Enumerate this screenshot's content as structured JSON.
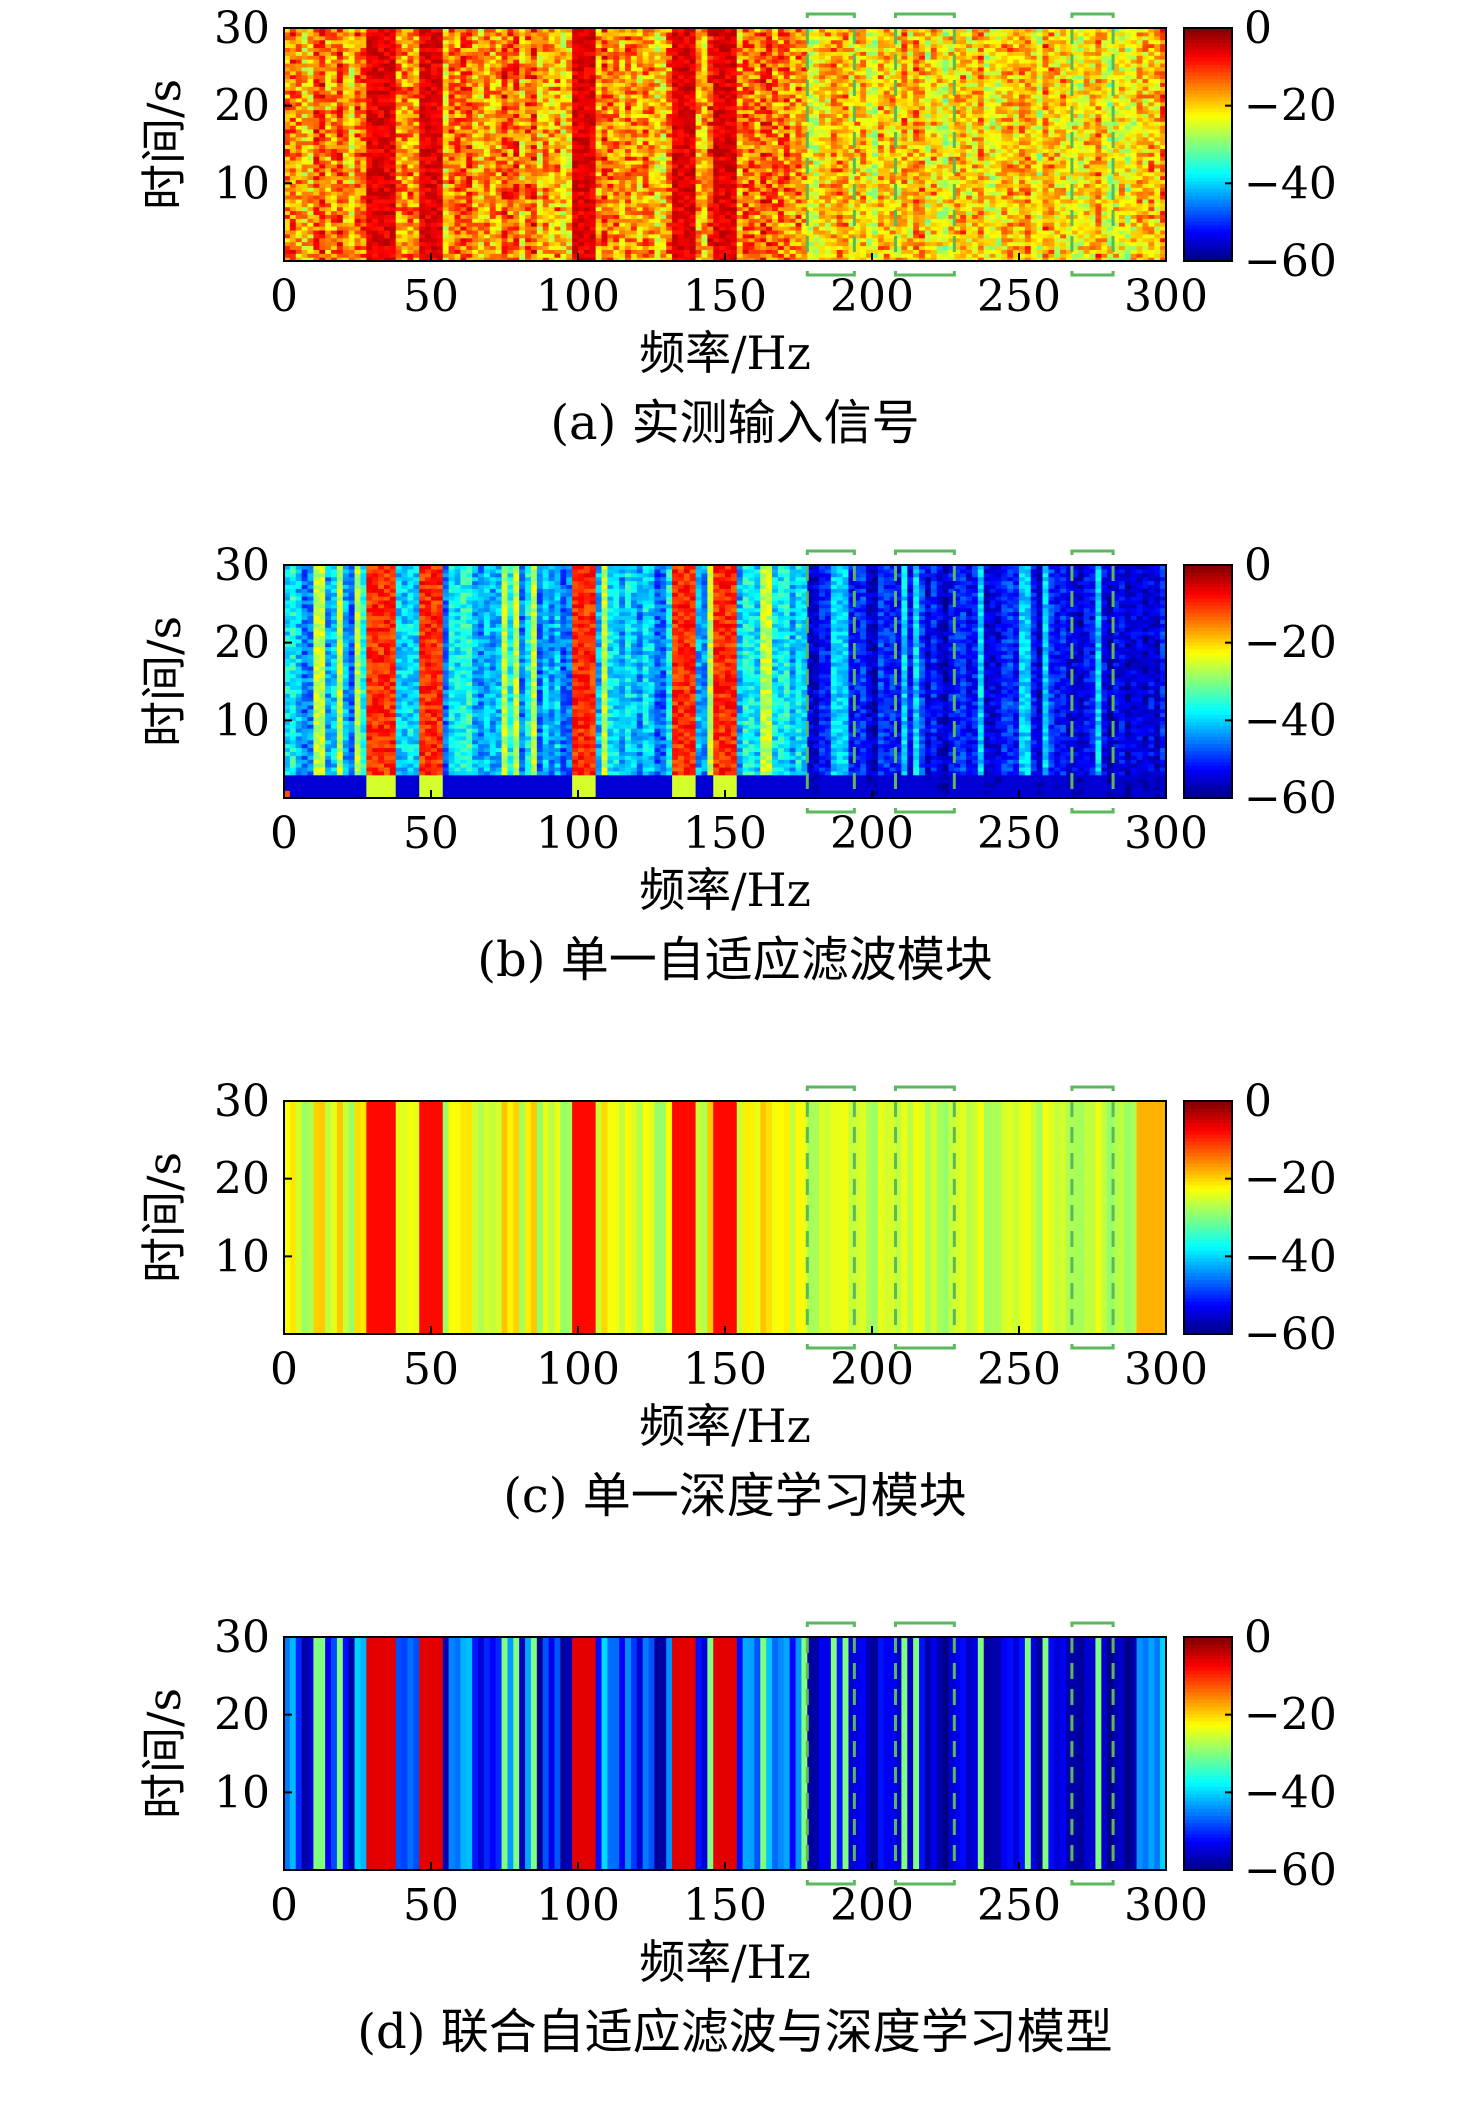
{
  "figure": {
    "panels": [
      {
        "caption": "(a) 实测输入信号",
        "style": "noisy"
      },
      {
        "caption": "(b) 单一自适应滤波模块",
        "style": "adaptive"
      },
      {
        "caption": "(c) 单一深度学习模块",
        "style": "deep"
      },
      {
        "caption": "(d) 联合自适应滤波与深度学习模型",
        "style": "joint"
      }
    ]
  },
  "chart_data": {
    "type": "heatmap",
    "xlabel": "频率/Hz",
    "ylabel": "时间/s",
    "xlim": [
      0,
      300
    ],
    "ylim": [
      0,
      30
    ],
    "xticks": [
      0,
      50,
      100,
      150,
      200,
      250,
      300
    ],
    "yticks": [
      10,
      20,
      30
    ],
    "colorbar": {
      "ticks": [
        0,
        -20,
        -40,
        -60
      ],
      "range": [
        -60,
        0
      ],
      "colormap": "jet"
    },
    "highlight_color": "#5cb85c",
    "highlight_bands_hz": [
      [
        178,
        194
      ],
      [
        208,
        228
      ],
      [
        268,
        282
      ]
    ],
    "dominant_lines_hz": [
      33,
      50,
      102,
      136,
      150
    ],
    "panels": [
      {
        "caption": "(a) 实测输入信号",
        "level_range_db": [
          -30,
          -3
        ]
      },
      {
        "caption": "(b) 单一自适应滤波模块",
        "level_range_db": [
          -60,
          -3
        ]
      },
      {
        "caption": "(c) 单一深度学习模块",
        "level_range_db": [
          -32,
          -3
        ]
      },
      {
        "caption": "(d) 联合自适应滤波与深度学习模型",
        "level_range_db": [
          -60,
          -3
        ]
      }
    ]
  }
}
